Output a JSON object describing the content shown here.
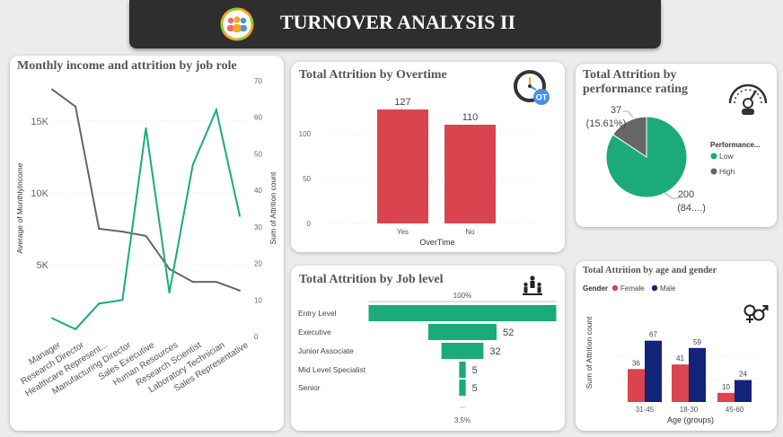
{
  "header": {
    "title": "TURNOVER ANALYSIS II",
    "logo_icon": "team-icon"
  },
  "colors": {
    "green": "#1aab79",
    "red": "#d9444f",
    "navy": "#12237a",
    "grey": "#666666",
    "line_grey": "#666666"
  },
  "chart_data": [
    {
      "id": "job_role",
      "type": "line",
      "title": "Monthly income and attrition by job role",
      "categories": [
        "Manager",
        "Research Director",
        "Healthcare Represent...",
        "Manufacturing Director",
        "Sales Executive",
        "Human Resources",
        "Research Scientist",
        "Laboratory Technician",
        "Sales Representative"
      ],
      "ylabel": "Average of MonthlyIncome",
      "y2label": "Sum of Attrition count",
      "ylim": [
        0,
        17800
      ],
      "y_ticks": [
        "5K",
        "10K",
        "15K"
      ],
      "y2lim": [
        0,
        70
      ],
      "y2_ticks": [
        "0",
        "10",
        "20",
        "30",
        "40",
        "50",
        "60",
        "70"
      ],
      "series": [
        {
          "name": "Average of MonthlyIncome",
          "axis": "left",
          "values": [
            17200,
            16000,
            7500,
            7300,
            7000,
            4700,
            3800,
            3800,
            3200
          ]
        },
        {
          "name": "Sum of Attrition count",
          "axis": "right",
          "values": [
            5,
            2,
            9,
            10,
            57,
            12,
            47,
            62,
            33
          ]
        }
      ]
    },
    {
      "id": "overtime",
      "type": "bar",
      "title": "Total Attrition by Overtime",
      "categories": [
        "Yes",
        "No"
      ],
      "values": [
        127,
        110
      ],
      "data_labels": [
        "127",
        "110"
      ],
      "xlabel": "OverTime",
      "ylim": [
        0,
        140
      ],
      "y_ticks": [
        "0",
        "50",
        "100"
      ],
      "icon": "overtime-clock-icon"
    },
    {
      "id": "performance",
      "type": "pie",
      "title": "Total Attrition by performance rating",
      "legend_title": "Performance...",
      "labels": [
        "Low",
        "High"
      ],
      "values": [
        200,
        37
      ],
      "data_labels": [
        "200\n(84....)",
        "37\n(15.61%)"
      ],
      "label_low_line1": "200",
      "label_low_line2": "(84....)",
      "label_high_line1": "37",
      "label_high_line2": "(15.61%)",
      "icon": "performance-gauge-icon"
    },
    {
      "id": "job_level",
      "type": "bar",
      "title": "Total Attrition by Job level",
      "categories": [
        "Entry Level",
        "Executive",
        "Junior Associate",
        "Mid Level Specialist",
        "Senior"
      ],
      "values": [
        143,
        52,
        32,
        5,
        5
      ],
      "data_labels": [
        "",
        "52",
        "32",
        "5",
        "5"
      ],
      "top_label": "100%",
      "bottom_label": "3.5%",
      "icon": "hierarchy-icon"
    },
    {
      "id": "age_gender",
      "type": "bar",
      "title": "Total Attrition by age and gender",
      "legend_title": "Gender",
      "categories": [
        "31-45",
        "18-30",
        "45-60"
      ],
      "xlabel": "Age (groups)",
      "ylabel": "Sum of Attrition count",
      "ylim": [
        0,
        75
      ],
      "series": [
        {
          "name": "Female",
          "values": [
            36,
            41,
            10
          ]
        },
        {
          "name": "Male",
          "values": [
            67,
            59,
            24
          ]
        }
      ],
      "icon": "gender-icon"
    }
  ]
}
